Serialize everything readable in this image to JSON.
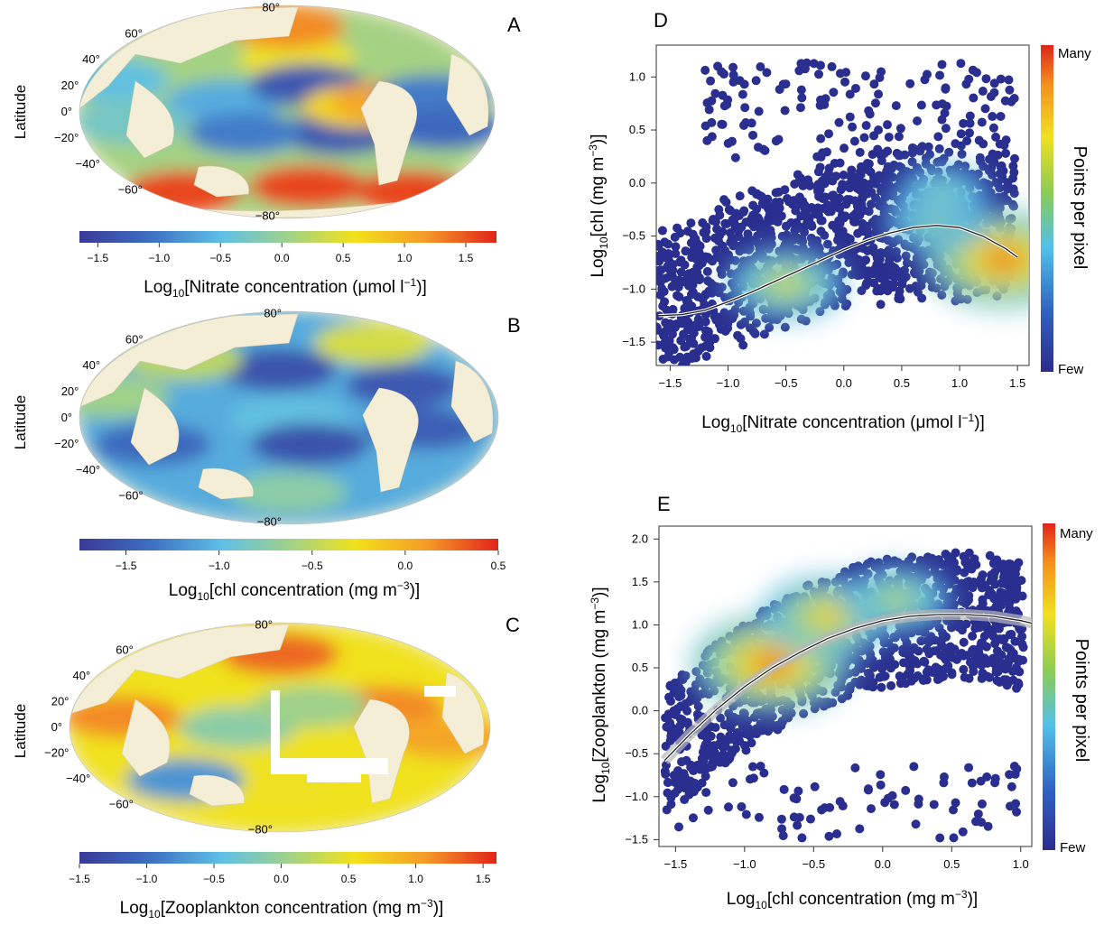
{
  "chart_data": [
    {
      "panel": "A",
      "type": "heatmap",
      "title": "",
      "ylabel": "Latitude",
      "lat_ticks": [
        "80°",
        "60°",
        "40°",
        "20°",
        "0°",
        "−20°",
        "−40°",
        "−60°",
        "−80°"
      ],
      "colorbar": {
        "label_main": "Log",
        "label_sub": "10",
        "label_rest": "[Nitrate concentration (μmol l",
        "label_sup": "−1",
        "label_end": ")]",
        "range": [
          -1.65,
          1.75
        ],
        "ticks": [
          -1.5,
          -1.0,
          -0.5,
          0.0,
          0.5,
          1.0,
          1.5
        ],
        "tick_labels": [
          "−1.5",
          "−1.0",
          "−0.5",
          "0.0",
          "0.5",
          "1.0",
          "1.5"
        ]
      },
      "blobs": [
        {
          "lon": 0.05,
          "lat": 0.5,
          "v": 0.65
        },
        {
          "lon": 0.0,
          "lat": 0.8,
          "v": 0.85
        },
        {
          "lon": 0.1,
          "lat": -0.7,
          "v": 0.95
        },
        {
          "lon": -0.5,
          "lat": -0.75,
          "v": 0.95
        },
        {
          "lon": 0.6,
          "lat": -0.75,
          "v": 0.95
        },
        {
          "lon": -0.3,
          "lat": 0.1,
          "v": 0.3
        },
        {
          "lon": 0.1,
          "lat": 0.25,
          "v": 0.1
        },
        {
          "lon": 0.25,
          "lat": -0.2,
          "v": 0.1
        },
        {
          "lon": -0.2,
          "lat": -0.2,
          "v": 0.2
        },
        {
          "lon": 0.35,
          "lat": 0.05,
          "v": 0.7
        },
        {
          "lon": 0.5,
          "lat": 0.1,
          "v": 0.8
        },
        {
          "lon": -0.75,
          "lat": -0.1,
          "v": 0.4
        },
        {
          "lon": 0.7,
          "lat": 0.15,
          "v": 0.2
        },
        {
          "lon": 0.75,
          "lat": -0.15,
          "v": 0.15
        },
        {
          "lon": -0.85,
          "lat": 0.3,
          "v": 0.35
        }
      ]
    },
    {
      "panel": "B",
      "type": "heatmap",
      "title": "",
      "ylabel": "Latitude",
      "lat_ticks": [
        "80°",
        "60°",
        "40°",
        "20°",
        "0°",
        "−20°",
        "−40°",
        "−60°",
        "−80°"
      ],
      "colorbar": {
        "label_main": "Log",
        "label_sub": "10",
        "label_rest": "[chl concentration (mg m",
        "label_sup": "−3",
        "label_end": ")]",
        "range": [
          -1.75,
          0.5
        ],
        "ticks": [
          -1.5,
          -1.0,
          -0.5,
          0.0,
          0.5
        ],
        "tick_labels": [
          "−1.5",
          "−1.0",
          "−0.5",
          "0.0",
          "0.5"
        ]
      },
      "blobs": [
        {
          "lon": 0.0,
          "lat": 0.0,
          "v": 0.35
        },
        {
          "lon": -0.05,
          "lat": 0.45,
          "v": 0.08
        },
        {
          "lon": 0.1,
          "lat": -0.25,
          "v": 0.08
        },
        {
          "lon": 0.55,
          "lat": 0.3,
          "v": 0.1
        },
        {
          "lon": -0.65,
          "lat": -0.25,
          "v": 0.15
        },
        {
          "lon": 0.65,
          "lat": -0.1,
          "v": 0.12
        },
        {
          "lon": 0.0,
          "lat": -0.7,
          "v": 0.45
        },
        {
          "lon": -0.5,
          "lat": 0.55,
          "v": 0.55
        },
        {
          "lon": 0.4,
          "lat": 0.7,
          "v": 0.6
        },
        {
          "lon": -0.85,
          "lat": 0.2,
          "v": 0.5
        }
      ]
    },
    {
      "panel": "C",
      "type": "heatmap",
      "title": "",
      "ylabel": "Latitude",
      "lat_ticks": [
        "80°",
        "60°",
        "40°",
        "20°",
        "0°",
        "−20°",
        "−40°",
        "−60°",
        "−80°"
      ],
      "colorbar": {
        "label_main": "Log",
        "label_sub": "10",
        "label_rest": "[Zooplankton concentration (mg m",
        "label_sup": "−3",
        "label_end": ")]",
        "range": [
          -1.5,
          1.6
        ],
        "ticks": [
          -1.5,
          -1.0,
          -0.5,
          0.0,
          0.5,
          1.0,
          1.5
        ],
        "tick_labels": [
          "−1.5",
          "−1.0",
          "−0.5",
          "0.0",
          "0.5",
          "1.0",
          "1.5"
        ]
      },
      "blobs": [
        {
          "lon": 0.0,
          "lat": 0.7,
          "v": 0.9
        },
        {
          "lon": 0.5,
          "lat": 0.2,
          "v": 0.85
        },
        {
          "lon": -0.75,
          "lat": 0.1,
          "v": 0.85
        },
        {
          "lon": -0.2,
          "lat": 0.0,
          "v": 0.45
        },
        {
          "lon": 0.15,
          "lat": 0.2,
          "v": 0.5
        },
        {
          "lon": 0.0,
          "lat": -0.55,
          "v": 0.65
        },
        {
          "lon": -0.45,
          "lat": -0.5,
          "v": 0.25
        },
        {
          "lon": 0.8,
          "lat": -0.1,
          "v": 0.8
        }
      ]
    },
    {
      "panel": "D",
      "type": "scatter",
      "title": "",
      "xlabel": {
        "main": "Log",
        "sub": "10",
        "rest": "[Nitrate concentration (μmol l",
        "sup": "−1",
        "end": ")]"
      },
      "ylabel": {
        "main": "Log",
        "sub": "10",
        "rest": "[chl (mg m",
        "sup": "−3",
        "end": ")]"
      },
      "xlim": [
        -1.62,
        1.6
      ],
      "ylim": [
        -1.72,
        1.3
      ],
      "xticks": [
        -1.5,
        -1.0,
        -0.5,
        0.0,
        0.5,
        1.0,
        1.5
      ],
      "xtick_labels": [
        "−1.5",
        "−1.0",
        "−0.5",
        "0.0",
        "0.5",
        "1.0",
        "1.5"
      ],
      "yticks": [
        -1.5,
        -1.0,
        -0.5,
        0.0,
        0.5,
        1.0
      ],
      "ytick_labels": [
        "−1.5",
        "−1.0",
        "−0.5",
        "0.0",
        "0.5",
        "1.0"
      ],
      "legend": {
        "title": "Points per pixel",
        "top": "Many",
        "bottom": "Few"
      },
      "fit_curve": {
        "x": [
          -1.6,
          -1.4,
          -1.2,
          -1.0,
          -0.8,
          -0.6,
          -0.4,
          -0.2,
          0.0,
          0.2,
          0.4,
          0.6,
          0.8,
          1.0,
          1.2,
          1.4,
          1.5
        ],
        "y": [
          -1.25,
          -1.24,
          -1.2,
          -1.12,
          -1.03,
          -0.93,
          -0.83,
          -0.73,
          -0.63,
          -0.54,
          -0.47,
          -0.42,
          -0.4,
          -0.42,
          -0.5,
          -0.62,
          -0.7
        ]
      },
      "density_peaks": [
        {
          "x": 1.38,
          "y": -0.72,
          "level": 1.0
        },
        {
          "x": -0.5,
          "y": -0.95,
          "level": 0.55
        },
        {
          "x": 0.8,
          "y": -0.35,
          "level": 0.4
        },
        {
          "x": 0.85,
          "y": -0.1,
          "level": 0.3
        }
      ]
    },
    {
      "panel": "E",
      "type": "scatter",
      "title": "",
      "xlabel": {
        "main": "Log",
        "sub": "10",
        "rest": "[chl concentration (mg m",
        "sup": "−3",
        "end": ")]"
      },
      "ylabel": {
        "main": "Log",
        "sub": "10",
        "rest": "[Zooplankton (mg m",
        "sup": "−3",
        "end": ")]"
      },
      "xlim": [
        -1.62,
        1.08
      ],
      "ylim": [
        -1.58,
        2.15
      ],
      "xticks": [
        -1.5,
        -1.0,
        -0.5,
        0.0,
        0.5,
        1.0
      ],
      "xtick_labels": [
        "−1.5",
        "−1.0",
        "−0.5",
        "0.0",
        "0.5",
        "1.0"
      ],
      "yticks": [
        -1.5,
        -1.0,
        -0.5,
        0.0,
        0.5,
        1.0,
        1.5,
        2.0
      ],
      "ytick_labels": [
        "−1.5",
        "−1.0",
        "−0.5",
        "0.0",
        "0.5",
        "1.0",
        "1.5",
        "2.0"
      ],
      "legend": {
        "title": "Points per pixel",
        "top": "Many",
        "bottom": "Few"
      },
      "fit_curve": {
        "x": [
          -1.58,
          -1.4,
          -1.2,
          -1.0,
          -0.8,
          -0.6,
          -0.4,
          -0.2,
          0.0,
          0.2,
          0.4,
          0.6,
          0.8,
          1.0,
          1.08
        ],
        "y": [
          -0.58,
          -0.28,
          0.02,
          0.28,
          0.5,
          0.68,
          0.84,
          0.96,
          1.05,
          1.1,
          1.12,
          1.12,
          1.1,
          1.05,
          1.02
        ]
      },
      "density_peaks": [
        {
          "x": -0.8,
          "y": 0.55,
          "level": 1.0
        },
        {
          "x": -0.4,
          "y": 1.1,
          "level": 0.7
        },
        {
          "x": 0.1,
          "y": 1.3,
          "level": 0.45
        }
      ]
    }
  ]
}
